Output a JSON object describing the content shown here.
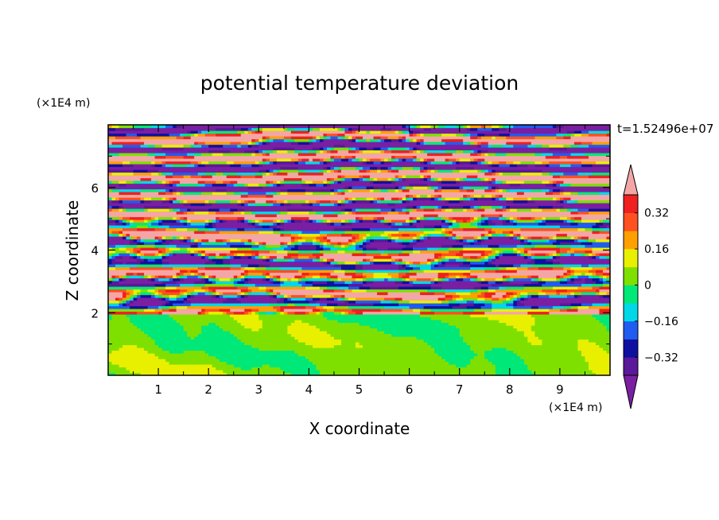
{
  "chart_data": {
    "type": "heatmap",
    "title": "potential temperature deviation",
    "xlabel": "X coordinate",
    "ylabel": "Z coordinate",
    "x_unit": "(×1E4 m)",
    "y_unit": "(×1E4 m)",
    "time_label": "t=1.52496e+07",
    "xlim": [
      0,
      10
    ],
    "ylim": [
      0,
      8
    ],
    "x_ticks": [
      1,
      2,
      3,
      4,
      5,
      6,
      7,
      8,
      9
    ],
    "y_ticks": [
      2,
      4,
      6
    ],
    "colorbar": {
      "levels": [
        -0.4,
        -0.32,
        -0.24,
        -0.16,
        -0.08,
        0,
        0.08,
        0.16,
        0.24,
        0.32,
        0.4
      ],
      "tick_values": [
        0.32,
        0.16,
        0,
        -0.16,
        -0.32
      ],
      "tick_labels": [
        "0.32",
        "0.16",
        "0",
        "−0.16",
        "−0.32"
      ],
      "colors": [
        "#5a189a",
        "#1010a0",
        "#1f5cf0",
        "#00d8e8",
        "#00e878",
        "#7fe000",
        "#e8f000",
        "#ffa000",
        "#ff5020",
        "#ee2020"
      ],
      "below_color": "#7a1fa2",
      "above_color": "#f4a6a6",
      "extend": "both"
    },
    "regions": [
      {
        "zrange": [
          0,
          2
        ],
        "pattern": "mixed",
        "dominant_values": [
          0.0,
          0.04,
          0.1
        ]
      },
      {
        "zrange": [
          2,
          5
        ],
        "pattern": "layered-turbulent",
        "dominant_values": [
          -0.45,
          0.45,
          0.2,
          -0.2
        ]
      },
      {
        "zrange": [
          5,
          8
        ],
        "pattern": "alternating-bands",
        "dominant_values": [
          -0.45,
          0.45
        ]
      }
    ]
  }
}
